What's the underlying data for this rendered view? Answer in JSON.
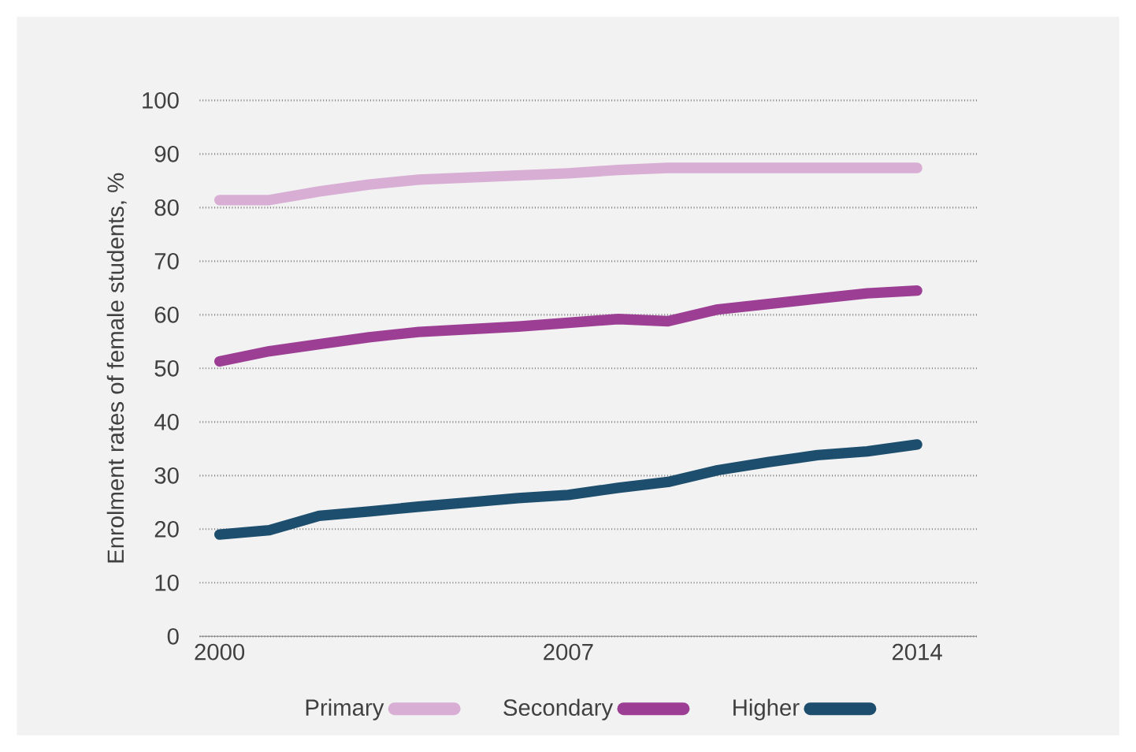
{
  "chart_data": {
    "type": "line",
    "ylabel": "Enrolment rates of female students, %",
    "x": [
      2000,
      2001,
      2002,
      2003,
      2004,
      2005,
      2006,
      2007,
      2008,
      2009,
      2010,
      2011,
      2012,
      2013,
      2014
    ],
    "series": [
      {
        "name": "Primary",
        "color": "#d8aed4",
        "values": [
          81.4,
          81.4,
          83,
          84.3,
          85.2,
          85.6,
          86,
          86.4,
          87,
          87.4,
          87.4,
          87.4,
          87.4,
          87.4,
          87.4
        ]
      },
      {
        "name": "Secondary",
        "color": "#9c3f94",
        "values": [
          51.3,
          53.2,
          54.5,
          55.8,
          56.8,
          57.3,
          57.8,
          58.5,
          59.2,
          58.8,
          61,
          62,
          63,
          64,
          64.5
        ]
      },
      {
        "name": "Higher",
        "color": "#1d4e6e",
        "values": [
          19,
          19.8,
          22.5,
          23.3,
          24.2,
          25,
          25.8,
          26.4,
          27.7,
          28.8,
          31,
          32.5,
          33.8,
          34.5,
          35.8
        ]
      }
    ],
    "xlim": [
      1999.6,
      2015.2
    ],
    "xticks": [
      2000,
      2007,
      2014
    ],
    "ylim": [
      0,
      100
    ],
    "yticks": [
      0,
      10,
      20,
      30,
      40,
      50,
      60,
      70,
      80,
      90,
      100
    ],
    "grid": "y",
    "legend": "bottom",
    "marker": "none",
    "line_style": "solid"
  }
}
